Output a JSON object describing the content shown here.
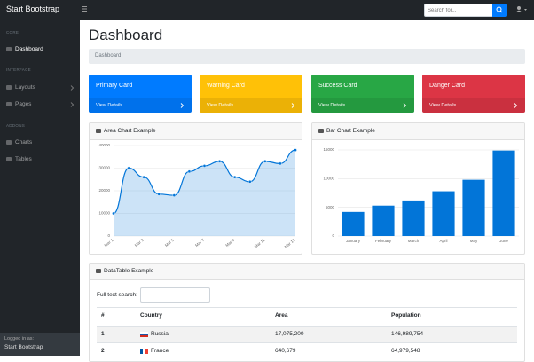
{
  "navbar": {
    "brand": "Start Bootstrap",
    "search_placeholder": "Search for..."
  },
  "sidebar": {
    "sections": [
      {
        "heading": "CORE",
        "items": [
          "Dashboard"
        ]
      },
      {
        "heading": "INTERFACE",
        "items": [
          "Layouts",
          "Pages"
        ]
      },
      {
        "heading": "ADDONS",
        "items": [
          "Charts",
          "Tables"
        ]
      }
    ],
    "footer": {
      "label": "Logged in as:",
      "user": "Start Bootstrap"
    }
  },
  "header": {
    "title": "Dashboard",
    "breadcrumb": "Dashboard"
  },
  "cards": [
    {
      "title": "Primary Card",
      "link": "View Details",
      "color": "#007bff"
    },
    {
      "title": "Warning Card",
      "link": "View Details",
      "color": "#ffc107"
    },
    {
      "title": "Success Card",
      "link": "View Details",
      "color": "#28a745"
    },
    {
      "title": "Danger Card",
      "link": "View Details",
      "color": "#dc3545"
    }
  ],
  "chart_data": [
    {
      "type": "area",
      "title": "Area Chart Example",
      "categories": [
        "Mar 1",
        null,
        "Mar 3",
        null,
        "Mar 5",
        null,
        "Mar 7",
        null,
        "Mar 9",
        null,
        "Mar 11",
        null,
        "Mar 13"
      ],
      "values": [
        10000,
        30000,
        26000,
        18500,
        18000,
        28500,
        31000,
        33000,
        26000,
        24000,
        33000,
        32000,
        38000
      ],
      "color": "#0275d8",
      "ylim": [
        0,
        40000
      ],
      "yticks": [
        0,
        10000,
        20000,
        30000,
        40000
      ],
      "grid": true
    },
    {
      "type": "bar",
      "title": "Bar Chart Example",
      "categories": [
        "January",
        "February",
        "March",
        "April",
        "May",
        "June"
      ],
      "values": [
        4200,
        5300,
        6200,
        7800,
        9800,
        14900
      ],
      "color": "#0275d8",
      "ylim": [
        0,
        15000
      ],
      "yticks": [
        0,
        5000,
        10000,
        15000
      ],
      "grid": true
    }
  ],
  "table": {
    "title": "DataTable Example",
    "search_label": "Full text search:",
    "columns": [
      "#",
      "Country",
      "Area",
      "Population"
    ],
    "rows": [
      [
        "1",
        "Russia",
        "17,075,200",
        "146,989,754"
      ],
      [
        "2",
        "France",
        "640,679",
        "64,979,548"
      ]
    ]
  }
}
